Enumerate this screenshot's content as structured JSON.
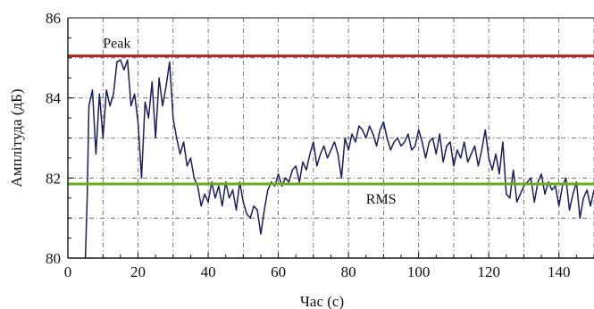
{
  "chart_data": {
    "type": "line",
    "title": "",
    "xlabel": "Час (с)",
    "ylabel": "Амплітуда (дБ)",
    "xlim": [
      0,
      150
    ],
    "ylim": [
      80,
      86
    ],
    "x_ticks": [
      0,
      20,
      40,
      60,
      80,
      100,
      120,
      140
    ],
    "x_tick_labels": [
      "0",
      "20",
      "40",
      "60",
      "80",
      "100",
      "120",
      "140"
    ],
    "y_ticks": [
      80,
      82,
      84,
      86
    ],
    "y_tick_labels": [
      "80",
      "82",
      "84",
      "86"
    ],
    "grid": true,
    "grid_style": "dash-dot",
    "reference_lines": [
      {
        "label": "Peak",
        "y": 85.05,
        "color": "#b22222"
      },
      {
        "label": "RMS",
        "y": 81.85,
        "color": "#6aaa1e"
      }
    ],
    "series": [
      {
        "color": "#1c1c5e",
        "x": [
          5,
          5.5,
          6,
          7,
          8,
          9,
          10,
          11,
          12,
          13,
          14,
          15,
          16,
          17,
          18,
          19,
          20,
          21,
          22,
          23,
          24,
          25,
          26,
          27,
          28,
          29,
          30,
          31,
          32,
          33,
          34,
          35,
          36,
          37,
          38,
          39,
          40,
          41,
          42,
          43,
          44,
          45,
          46,
          47,
          48,
          49,
          50,
          51,
          52,
          53,
          54,
          55,
          56,
          57,
          58,
          59,
          60,
          61,
          62,
          63,
          64,
          65,
          66,
          67,
          68,
          69,
          70,
          71,
          72,
          73,
          74,
          75,
          76,
          77,
          78,
          79,
          80,
          81,
          82,
          83,
          84,
          85,
          86,
          87,
          88,
          89,
          90,
          91,
          92,
          93,
          94,
          95,
          96,
          97,
          98,
          99,
          100,
          101,
          102,
          103,
          104,
          105,
          106,
          107,
          108,
          109,
          110,
          111,
          112,
          113,
          114,
          115,
          116,
          117,
          118,
          119,
          120,
          121,
          122,
          123,
          124,
          125,
          126,
          127,
          128,
          129,
          130,
          131,
          132,
          133,
          134,
          135,
          136,
          137,
          138,
          139,
          140,
          141,
          142,
          143,
          144,
          145,
          146,
          147,
          148,
          149,
          150
        ],
        "y": [
          80.0,
          81.5,
          83.8,
          84.2,
          82.6,
          84.1,
          83.0,
          84.2,
          83.8,
          84.1,
          84.9,
          84.95,
          84.7,
          84.95,
          83.8,
          84.1,
          83.4,
          82.0,
          83.9,
          83.5,
          84.4,
          83.0,
          84.5,
          83.8,
          84.3,
          84.9,
          83.5,
          83.0,
          82.6,
          82.9,
          82.3,
          82.5,
          82.0,
          81.8,
          81.3,
          81.6,
          81.4,
          81.9,
          81.5,
          81.8,
          81.3,
          81.9,
          81.5,
          81.7,
          81.2,
          81.9,
          81.4,
          81.1,
          81.0,
          81.3,
          81.2,
          80.6,
          81.2,
          81.7,
          81.9,
          81.8,
          82.1,
          81.8,
          82.0,
          81.9,
          82.2,
          82.3,
          81.9,
          82.4,
          82.2,
          82.6,
          82.9,
          82.3,
          82.6,
          82.8,
          82.5,
          82.7,
          82.9,
          82.6,
          82.0,
          83.0,
          82.7,
          83.1,
          82.9,
          83.3,
          83.2,
          83.0,
          83.3,
          83.1,
          82.8,
          83.2,
          83.4,
          83.0,
          82.7,
          82.9,
          83.0,
          82.8,
          82.9,
          83.1,
          82.7,
          82.8,
          83.2,
          82.9,
          82.5,
          82.9,
          83.0,
          82.6,
          83.1,
          82.4,
          82.8,
          82.9,
          82.3,
          82.7,
          82.5,
          82.9,
          82.4,
          82.6,
          82.8,
          82.3,
          82.7,
          83.2,
          82.5,
          82.2,
          82.6,
          82.1,
          82.9,
          81.6,
          81.5,
          82.2,
          81.4,
          81.6,
          81.8,
          81.9,
          82.0,
          81.4,
          81.9,
          82.1,
          81.6,
          81.9,
          81.7,
          81.8,
          81.3,
          81.8,
          82.0,
          81.2,
          81.6,
          81.9,
          81.0,
          81.5,
          81.7,
          81.3,
          81.7
        ]
      }
    ]
  }
}
